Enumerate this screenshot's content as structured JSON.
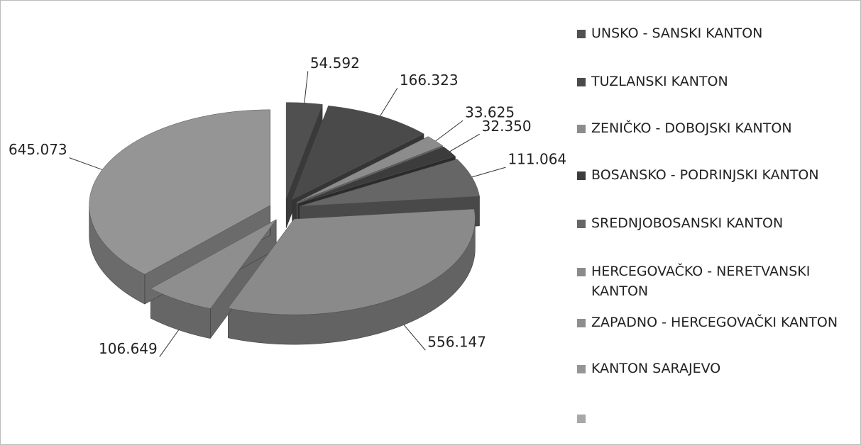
{
  "chart_data": {
    "type": "pie3d",
    "categories": [
      "UNSKO - SANSKI KANTON",
      "TUZLANSKI KANTON",
      "ZENIČKO - DOBOJSKI KANTON",
      "BOSANSKO - PODRINJSKI KANTON",
      "SREDNJOBOSANSKI KANTON",
      "HERCEGOVAČKO - NERETVANSKI KANTON",
      "ZAPADNO - HERCEGOVAČKI KANTON",
      "KANTON SARAJEVO",
      null
    ],
    "values": [
      54592,
      166323,
      33625,
      32350,
      111064,
      556147,
      106649,
      645073,
      null
    ],
    "value_labels": [
      "54.592",
      "166.323",
      "33.625",
      "32.350",
      "111.064",
      "556.147",
      "106.649",
      "645.073",
      null
    ],
    "colors": [
      "#505050",
      "#4a4a4a",
      "#8c8c8c",
      "#3c3c3c",
      "#666666",
      "#8a8a8a",
      "#8e8e8e",
      "#959595",
      "#a8a8a8"
    ],
    "legend": "right"
  }
}
